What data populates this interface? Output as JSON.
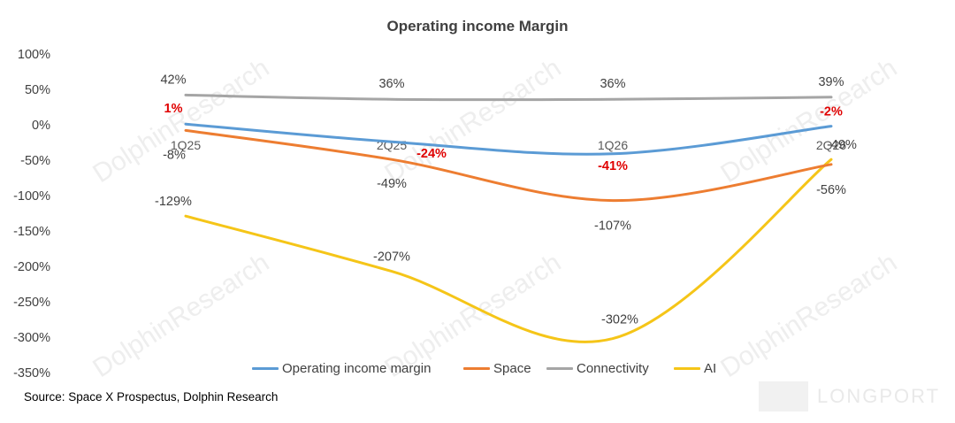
{
  "chart_data": {
    "type": "line",
    "title": "Operating income Margin",
    "categories": [
      "1Q25",
      "2Q25",
      "1Q26",
      "2Q26"
    ],
    "y_tick_labels": [
      "100%",
      "50%",
      "0%",
      "-50%",
      "-100%",
      "-150%",
      "-200%",
      "-250%",
      "-300%",
      "-350%"
    ],
    "ylim": [
      -350,
      100
    ],
    "legend_position": "bottom",
    "grid": false,
    "series": [
      {
        "name": "Operating income margin",
        "color": "#5B9BD5",
        "values": [
          1,
          -24,
          -41,
          -2
        ],
        "labels": [
          "1%",
          "-24%",
          "-41%",
          "-2%"
        ],
        "label_color": "#e00000"
      },
      {
        "name": "Space",
        "color": "#ED7D31",
        "values": [
          -8,
          -49,
          -107,
          -56
        ],
        "labels": [
          "-8%",
          "-49%",
          "-107%",
          "-56%"
        ],
        "label_color": "#404040"
      },
      {
        "name": "Connectivity",
        "color": "#A5A5A5",
        "values": [
          42,
          36,
          36,
          39
        ],
        "labels": [
          "42%",
          "36%",
          "36%",
          "39%"
        ],
        "label_color": "#404040"
      },
      {
        "name": "AI",
        "color": "#F5C518",
        "values": [
          -129,
          -207,
          -302,
          -49
        ],
        "labels": [
          "-129%",
          "-207%",
          "-302%",
          "-49%"
        ],
        "label_color": "#404040"
      }
    ]
  },
  "source": "Source: Space X Prospectus, Dolphin Research",
  "watermark": "DolphinResearch",
  "brand": "LONGPORT"
}
